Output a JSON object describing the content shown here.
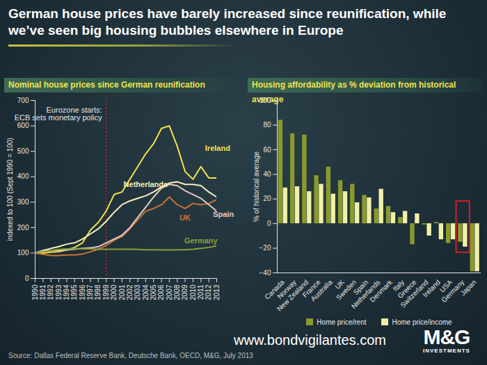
{
  "title": "German house prices have barely increased since reunification, while we’ve seen big housing bubbles elsewhere in Europe",
  "chart_data": [
    {
      "type": "line",
      "title": "Nominal house prices since German reunification",
      "x": [
        1990,
        1991,
        1992,
        1993,
        1994,
        1995,
        1996,
        1997,
        1998,
        1999,
        2000,
        2001,
        2002,
        2003,
        2004,
        2005,
        2006,
        2007,
        2008,
        2009,
        2010,
        2011,
        2012,
        2013
      ],
      "xlim": [
        1990,
        2013
      ],
      "xticks": [
        1990,
        1991,
        1992,
        1993,
        1994,
        1995,
        1996,
        1997,
        1998,
        1999,
        2000,
        2001,
        2002,
        2003,
        2004,
        2005,
        2006,
        2007,
        2008,
        2009,
        2010,
        2011,
        2012,
        2013
      ],
      "ylabel": "indexed to 100 (Sept 1990 = 100)",
      "ylim": [
        0,
        700
      ],
      "yticks": [
        0,
        100,
        200,
        300,
        400,
        500,
        600,
        700
      ],
      "grid": false,
      "annotations": [
        {
          "x": 1999,
          "text": [
            "Eurozone starts:",
            "ECB sets monetary policy"
          ]
        }
      ],
      "series": [
        {
          "name": "Ireland",
          "color": "#f2e34a",
          "values": [
            100,
            100,
            103,
            105,
            112,
            122,
            140,
            190,
            220,
            265,
            330,
            340,
            390,
            440,
            490,
            530,
            590,
            600,
            520,
            420,
            390,
            440,
            395,
            395
          ]
        },
        {
          "name": "Netherlands",
          "color": "#f6f0bc",
          "values": [
            100,
            110,
            118,
            125,
            135,
            140,
            155,
            175,
            195,
            225,
            260,
            290,
            305,
            315,
            325,
            340,
            360,
            375,
            380,
            370,
            370,
            365,
            340,
            320
          ]
        },
        {
          "name": "UK",
          "color": "#c8733a",
          "values": [
            100,
            95,
            90,
            90,
            92,
            92,
            96,
            105,
            115,
            130,
            150,
            165,
            195,
            230,
            265,
            275,
            290,
            320,
            290,
            275,
            295,
            290,
            295,
            310
          ]
        },
        {
          "name": "Spain",
          "color": "#e6cbc2",
          "values": [
            100,
            108,
            110,
            110,
            112,
            115,
            118,
            120,
            125,
            140,
            155,
            170,
            200,
            240,
            280,
            320,
            355,
            370,
            365,
            345,
            330,
            315,
            290,
            265
          ]
        },
        {
          "name": "Germany",
          "color": "#8aa03a",
          "values": [
            100,
            105,
            110,
            114,
            116,
            117,
            117,
            116,
            115,
            115,
            115,
            115,
            115,
            114,
            113,
            113,
            112,
            112,
            113,
            113,
            115,
            118,
            122,
            128
          ]
        }
      ]
    },
    {
      "type": "bar",
      "title": "Housing affordability as % deviation from historical average",
      "categories": [
        "Canada",
        "Norway",
        "New Zealand",
        "France",
        "Australia",
        "UK",
        "Sweden",
        "Spain",
        "Netherlands",
        "Denmark",
        "Italy",
        "Greece",
        "Switzerland",
        "Ireland",
        "USA",
        "Germany",
        "Japan"
      ],
      "ylabel": "% of historical average",
      "ylim": [
        -40,
        100
      ],
      "yticks": [
        -40,
        -20,
        0,
        20,
        40,
        60,
        80,
        100
      ],
      "grid": false,
      "legend": "bottom",
      "highlight": "Germany",
      "series": [
        {
          "name": "Home price/rent",
          "color": "#8a9a2c",
          "values": [
            84,
            73,
            72,
            39,
            46,
            35,
            32,
            23,
            12,
            14,
            5,
            -17,
            -1,
            1,
            -16,
            -15,
            -39
          ]
        },
        {
          "name": "Home price/income",
          "color": "#f0f0a8",
          "values": [
            29,
            30,
            26,
            32,
            24,
            26,
            17,
            21,
            28,
            9,
            10,
            8,
            -10,
            -13,
            -13,
            -19,
            -39
          ]
        }
      ]
    }
  ],
  "website": "www.bondvigilantes.com",
  "logo": [
    "M&G",
    "INVESTMENTS"
  ],
  "source": "Source: Dallas Federal Reserve Bank, Deutsche Bank, OECD, M&G, July 2013"
}
